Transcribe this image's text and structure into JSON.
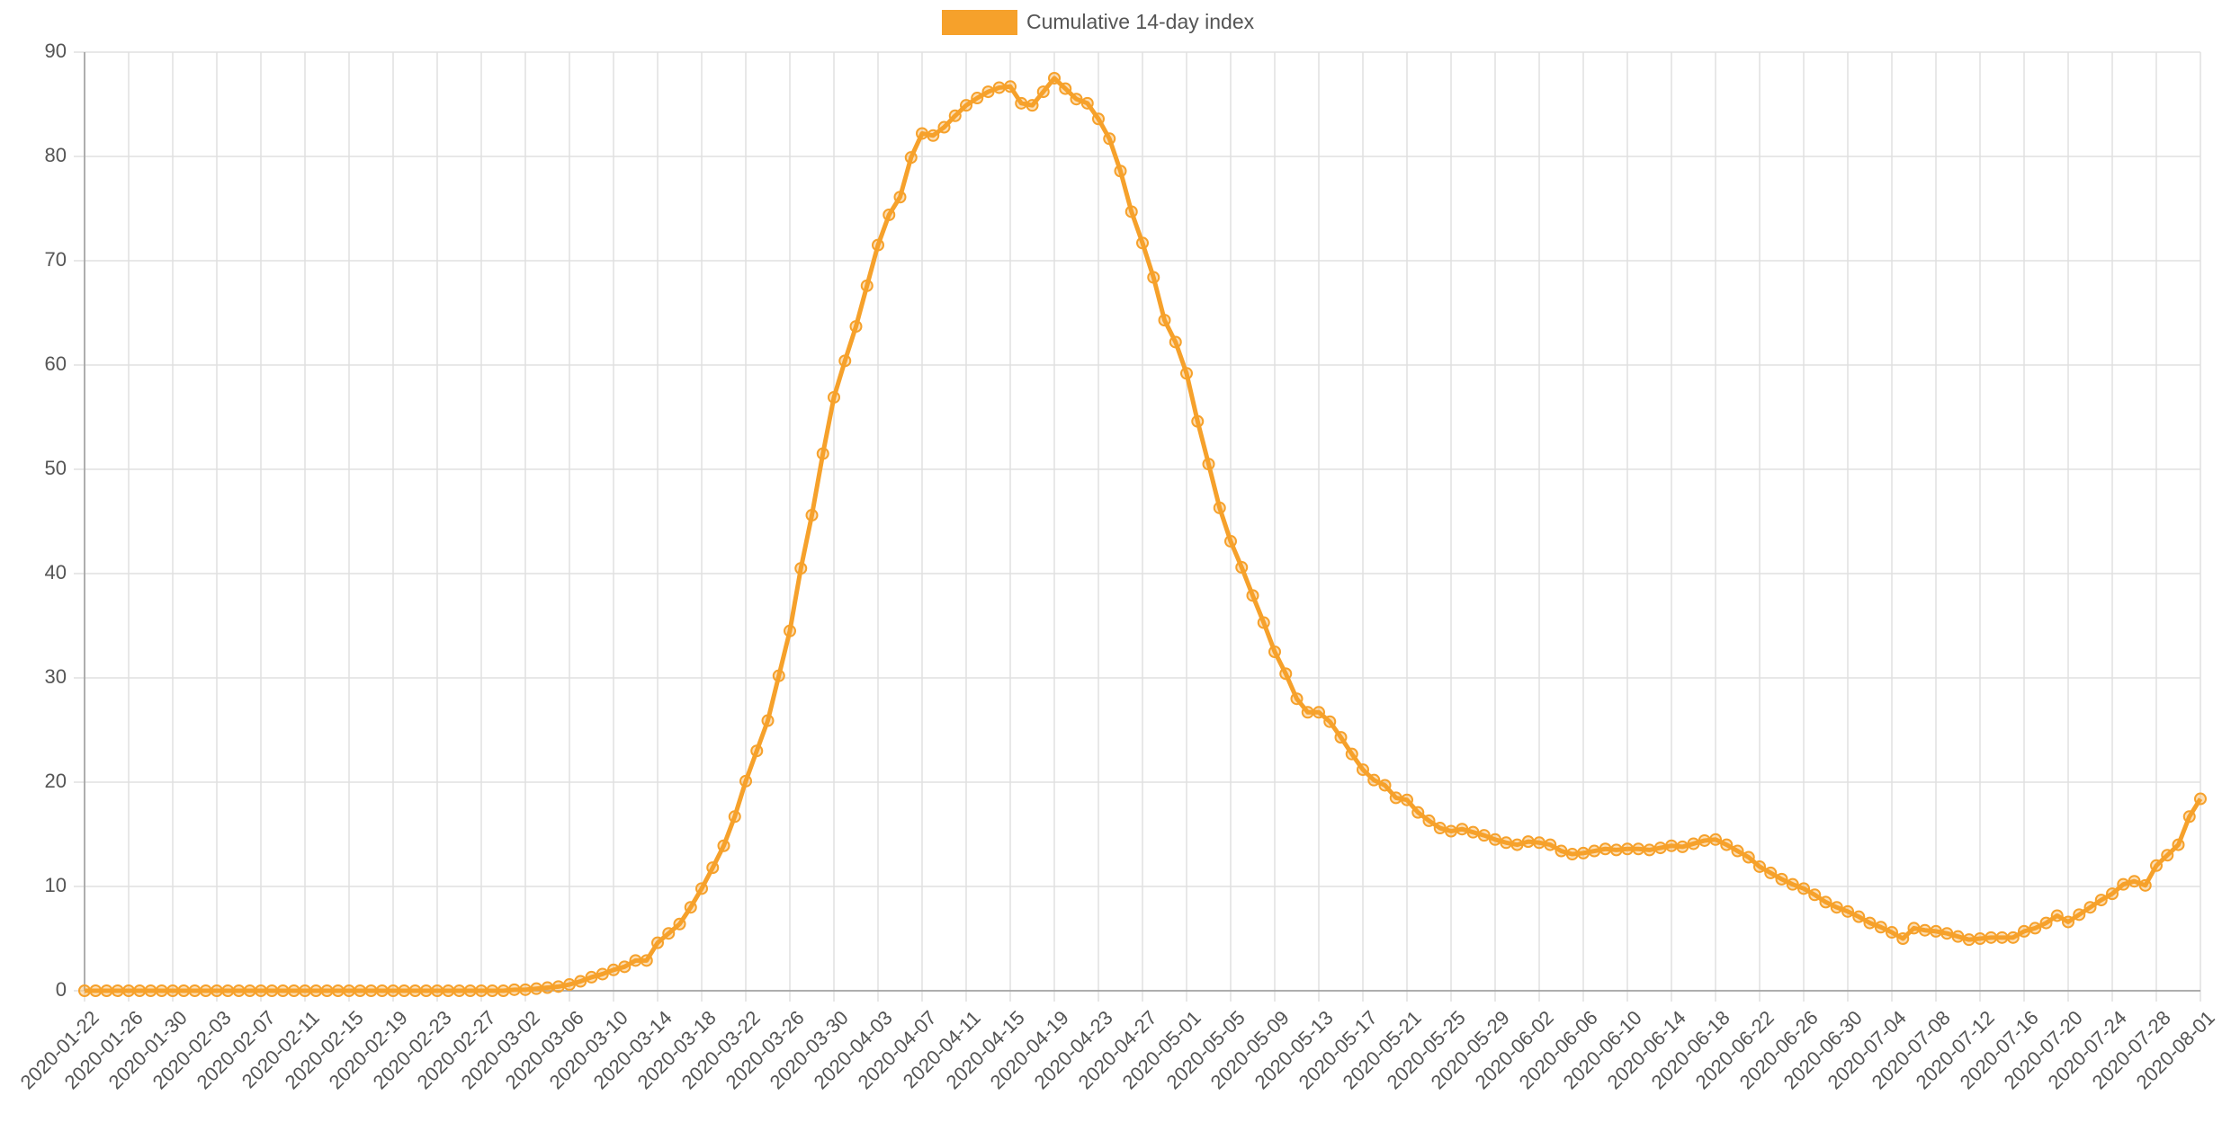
{
  "chart_data": {
    "type": "line",
    "categories": [
      "2020-01-22",
      null,
      null,
      null,
      "2020-01-26",
      null,
      null,
      null,
      "2020-01-30",
      null,
      null,
      null,
      "2020-02-03",
      null,
      null,
      null,
      "2020-02-07",
      null,
      null,
      null,
      "2020-02-11",
      null,
      null,
      null,
      "2020-02-15",
      null,
      null,
      null,
      "2020-02-19",
      null,
      null,
      null,
      "2020-02-23",
      null,
      null,
      null,
      "2020-02-27",
      null,
      null,
      null,
      "2020-03-02",
      null,
      null,
      null,
      "2020-03-06",
      null,
      null,
      null,
      "2020-03-10",
      null,
      null,
      null,
      "2020-03-14",
      null,
      null,
      null,
      "2020-03-18",
      null,
      null,
      null,
      "2020-03-22",
      null,
      null,
      null,
      "2020-03-26",
      null,
      null,
      null,
      "2020-03-30",
      null,
      null,
      null,
      "2020-04-03",
      null,
      null,
      null,
      "2020-04-07",
      null,
      null,
      null,
      "2020-04-11",
      null,
      null,
      null,
      "2020-04-15",
      null,
      null,
      null,
      "2020-04-19",
      null,
      null,
      null,
      "2020-04-23",
      null,
      null,
      null,
      "2020-04-27",
      null,
      null,
      null,
      "2020-05-01",
      null,
      null,
      null,
      "2020-05-05",
      null,
      null,
      null,
      "2020-05-09",
      null,
      null,
      null,
      "2020-05-13",
      null,
      null,
      null,
      "2020-05-17",
      null,
      null,
      null,
      "2020-05-21",
      null,
      null,
      null,
      "2020-05-25",
      null,
      null,
      null,
      "2020-05-29",
      null,
      null,
      null,
      "2020-06-02",
      null,
      null,
      null,
      "2020-06-06",
      null,
      null,
      null,
      "2020-06-10",
      null,
      null,
      null,
      "2020-06-14",
      null,
      null,
      null,
      "2020-06-18",
      null,
      null,
      null,
      "2020-06-22",
      null,
      null,
      null,
      "2020-06-26",
      null,
      null,
      null,
      "2020-06-30",
      null,
      null,
      null,
      "2020-07-04",
      null,
      null,
      null,
      "2020-07-08",
      null,
      null,
      null,
      "2020-07-12",
      null,
      null,
      null,
      "2020-07-16",
      null,
      null,
      null,
      "2020-07-20",
      null,
      null,
      null,
      "2020-07-24",
      null,
      null,
      null,
      "2020-07-28",
      null,
      null,
      null,
      "2020-08-01"
    ],
    "series": [
      {
        "name": "Cumulative 14-day index",
        "color": "#f6a12b",
        "values": [
          0,
          0,
          0,
          0,
          0,
          0,
          0,
          0,
          0,
          0,
          0,
          0,
          0,
          0,
          0,
          0,
          0,
          0,
          0,
          0,
          0,
          0,
          0,
          0,
          0,
          0,
          0,
          0,
          0,
          0,
          0,
          0,
          0,
          0,
          0,
          0,
          0,
          0,
          0,
          0.1,
          0.1,
          0.2,
          0.3,
          0.4,
          0.6,
          0.9,
          1.3,
          1.6,
          2.0,
          2.3,
          2.9,
          2.9,
          4.6,
          5.5,
          6.4,
          8.0,
          9.8,
          11.8,
          13.9,
          16.7,
          20.1,
          23.0,
          25.9,
          30.2,
          34.5,
          40.5,
          45.6,
          51.5,
          56.9,
          60.4,
          63.7,
          67.6,
          71.5,
          74.4,
          76.1,
          79.9,
          82.2,
          82.0,
          82.8,
          83.9,
          84.9,
          85.6,
          86.2,
          86.6,
          86.7,
          85.1,
          84.9,
          86.2,
          87.5,
          86.5,
          85.5,
          85.1,
          83.6,
          81.7,
          78.6,
          74.7,
          71.7,
          68.4,
          64.3,
          62.2,
          59.2,
          54.6,
          50.5,
          46.3,
          43.1,
          40.6,
          37.9,
          35.3,
          32.5,
          30.4,
          28.0,
          26.7,
          26.7,
          25.8,
          24.3,
          22.7,
          21.2,
          20.2,
          19.7,
          18.5,
          18.3,
          17.1,
          16.3,
          15.6,
          15.3,
          15.5,
          15.2,
          14.9,
          14.5,
          14.2,
          14.0,
          14.3,
          14.2,
          14.0,
          13.4,
          13.1,
          13.2,
          13.4,
          13.6,
          13.5,
          13.6,
          13.6,
          13.5,
          13.7,
          13.9,
          13.8,
          14.1,
          14.4,
          14.5,
          14.0,
          13.4,
          12.8,
          11.9,
          11.3,
          10.7,
          10.2,
          9.8,
          9.2,
          8.5,
          8.0,
          7.6,
          7.1,
          6.5,
          6.1,
          5.6,
          5.0,
          6.0,
          5.8,
          5.7,
          5.5,
          5.2,
          4.9,
          5.0,
          5.1,
          5.1,
          5.1,
          5.7,
          6.0,
          6.5,
          7.2,
          6.6,
          7.3,
          8.0,
          8.7,
          9.3,
          10.2,
          10.5,
          10.1,
          12.0,
          13.0,
          14.0,
          16.7,
          18.4
        ]
      }
    ],
    "ylim": [
      0,
      90
    ],
    "yticks": [
      0,
      10,
      20,
      30,
      40,
      50,
      60,
      70,
      80,
      90
    ],
    "grid": true,
    "legend": "top"
  }
}
